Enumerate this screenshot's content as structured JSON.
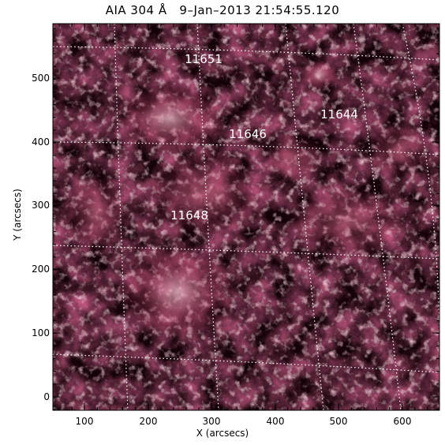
{
  "title": "AIA 304 Å   9–Jan–2013 21:54:55.120",
  "xlabel": "X (arcsecs)",
  "ylabel": "Y (arcsecs)",
  "x_ticks": [
    "100",
    "200",
    "300",
    "400",
    "500",
    "600"
  ],
  "y_ticks": [
    "0",
    "100",
    "200",
    "300",
    "400",
    "500"
  ],
  "active_regions": [
    {
      "label": "11651"
    },
    {
      "label": "11646"
    },
    {
      "label": "11644"
    },
    {
      "label": "11648"
    }
  ],
  "colors": {
    "background_dark": "#140208",
    "plasma_mid": "#8a1f3e",
    "plasma_bright": "#f2b7c8",
    "grid": "#ffffff",
    "frame": "#000000"
  }
}
